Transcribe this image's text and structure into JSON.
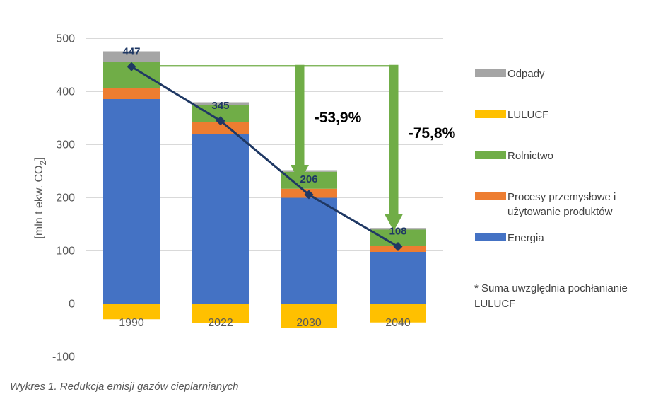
{
  "chart_data": {
    "type": "bar",
    "stacked": true,
    "categories": [
      "1990",
      "2022",
      "2030",
      "2040"
    ],
    "ylabel_text": "[mln t ekw. CO",
    "ylabel_sub": "2",
    "ylabel_close": "]",
    "ylim": [
      -100,
      500
    ],
    "yticks": [
      500,
      400,
      300,
      200,
      100,
      0,
      -100
    ],
    "grid": true,
    "series": [
      {
        "key": "energia",
        "values": [
          386,
          320,
          200,
          98
        ],
        "color": "#4472c4"
      },
      {
        "key": "procesy",
        "values": [
          21,
          22,
          17,
          11
        ],
        "color": "#ed7d31"
      },
      {
        "key": "rolnictwo",
        "values": [
          49,
          33,
          32,
          31
        ],
        "color": "#70ad47"
      },
      {
        "key": "odpady",
        "values": [
          20,
          5,
          3,
          3
        ],
        "color": "#a5a5a5"
      },
      {
        "key": "lulucf",
        "values": [
          -29,
          -36,
          -46,
          -35
        ],
        "color": "#ffc000"
      }
    ],
    "total_line": {
      "values": [
        447,
        345,
        206,
        108
      ],
      "labels": [
        "447",
        "345",
        "206",
        "108"
      ],
      "color": "#1f3864"
    },
    "reductions": [
      {
        "target_category": "2030",
        "label": "-53,9%",
        "color": "#70ad47"
      },
      {
        "target_category": "2040",
        "label": "-75,8%",
        "color": "#70ad47"
      }
    ],
    "reference_line_value": 449
  },
  "legend": [
    {
      "label": "Odpady",
      "color": "#a5a5a5"
    },
    {
      "label": "LULUCF",
      "color": "#ffc000"
    },
    {
      "label": "Rolnictwo",
      "color": "#70ad47"
    },
    {
      "label": "Procesy przemysłowe i użytowanie produktów",
      "color": "#ed7d31"
    },
    {
      "label": "Energia",
      "color": "#4472c4"
    }
  ],
  "note": "* Suma uwzględnia pochłanianie LULUCF",
  "caption": "Wykres 1. Redukcja emisji gazów cieplarnianych"
}
